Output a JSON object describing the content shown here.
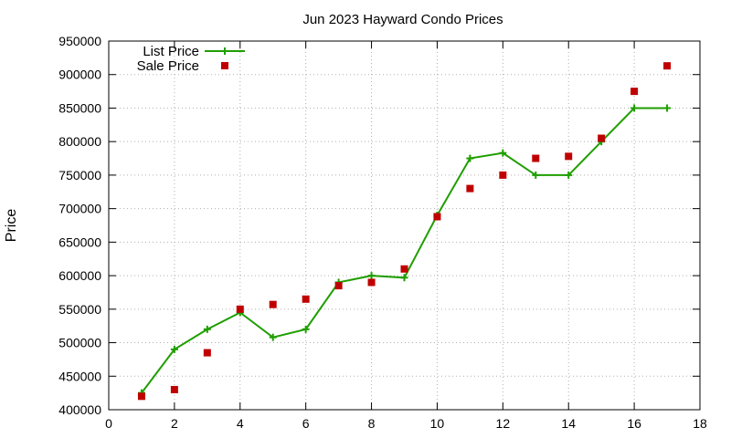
{
  "chart_data": {
    "type": "line",
    "title": "Jun 2023 Hayward Condo Prices",
    "xlabel": "",
    "ylabel": "Price",
    "xlim": [
      0,
      18
    ],
    "ylim": [
      400000,
      950000
    ],
    "x_ticks": [
      0,
      2,
      4,
      6,
      8,
      10,
      12,
      14,
      16,
      18
    ],
    "y_ticks": [
      400000,
      450000,
      500000,
      550000,
      600000,
      650000,
      700000,
      750000,
      800000,
      850000,
      900000,
      950000
    ],
    "grid": true,
    "legend_position": "top-left",
    "series": [
      {
        "name": "List Price",
        "style": "line+points",
        "color": "#1f9e00",
        "x": [
          1,
          2,
          3,
          4,
          5,
          6,
          7,
          8,
          9,
          10,
          11,
          12,
          13,
          14,
          15,
          16,
          17
        ],
        "values": [
          425000,
          490000,
          520000,
          545000,
          508000,
          520000,
          590000,
          600000,
          597000,
          690000,
          775000,
          783000,
          750000,
          750000,
          800000,
          850000,
          850000
        ]
      },
      {
        "name": "Sale Price",
        "style": "points",
        "color": "#c00000",
        "x": [
          1,
          2,
          3,
          4,
          5,
          6,
          7,
          8,
          9,
          10,
          11,
          12,
          13,
          14,
          15,
          16,
          17
        ],
        "values": [
          420000,
          430000,
          485000,
          550000,
          557000,
          565000,
          585000,
          590000,
          610000,
          688000,
          730000,
          750000,
          775000,
          778000,
          805000,
          875000,
          913000
        ]
      }
    ]
  }
}
